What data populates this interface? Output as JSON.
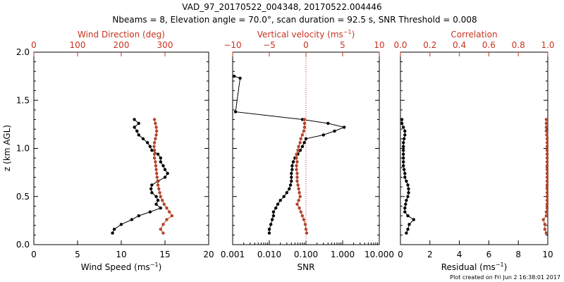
{
  "figure": {
    "title_line1": "VAD_97_20170522_004348, 20170522.004446",
    "title_line2": "Nbeams = 8, Elevation angle = 70.0°, scan duration = 92.5 s, SNR Threshold = 0.008",
    "ylabel": "z (km AGL)",
    "footer": "Plot created on Fri Jun  2 16:38:01 2017",
    "colors": {
      "black": "#000000",
      "red": "#c8321e",
      "series_red": "#b4442a"
    }
  },
  "chart_data": [
    {
      "type": "line",
      "bottom_axis": {
        "label_prefix": "Wind Speed (ms",
        "label_exp": "−1",
        "label_suffix": ")",
        "range": [
          0,
          20
        ],
        "ticks": [
          0,
          5,
          10,
          15,
          20
        ],
        "tick_labels": [
          "0",
          "5",
          "10",
          "15",
          "20"
        ]
      },
      "top_axis": {
        "label": "Wind Direction (deg)",
        "range": [
          0,
          400
        ],
        "ticks": [
          0,
          100,
          200,
          300
        ],
        "tick_labels": [
          "0",
          "100",
          "200",
          "300"
        ]
      },
      "y_axis": {
        "range": [
          0,
          2.0
        ],
        "ticks": [
          0,
          0.5,
          1.0,
          1.5,
          2.0
        ],
        "tick_labels": [
          "0.0",
          "0.5",
          "1.0",
          "1.5",
          "2.0"
        ]
      },
      "series": [
        {
          "axis": "bottom",
          "color": "black",
          "z": [
            0.12,
            0.16,
            0.21,
            0.26,
            0.3,
            0.34,
            0.38,
            0.42,
            0.46,
            0.5,
            0.54,
            0.58,
            0.62,
            0.66,
            0.7,
            0.74,
            0.78,
            0.82,
            0.86,
            0.9,
            0.94,
            0.98,
            1.02,
            1.06,
            1.1,
            1.14,
            1.18,
            1.22,
            1.26,
            1.3
          ],
          "values": [
            9.0,
            9.2,
            10.0,
            11.2,
            12.0,
            13.3,
            14.5,
            14.0,
            14.2,
            14.0,
            13.5,
            13.4,
            13.5,
            14.2,
            15.0,
            15.3,
            15.0,
            14.8,
            14.5,
            14.5,
            14.2,
            13.5,
            13.3,
            13.0,
            12.5,
            12.0,
            11.8,
            11.5,
            12.0,
            11.5
          ]
        },
        {
          "axis": "top",
          "color": "red",
          "z": [
            0.12,
            0.16,
            0.21,
            0.26,
            0.3,
            0.34,
            0.38,
            0.42,
            0.46,
            0.5,
            0.54,
            0.58,
            0.62,
            0.66,
            0.7,
            0.74,
            0.78,
            0.82,
            0.86,
            0.9,
            0.94,
            0.98,
            1.02,
            1.06,
            1.1,
            1.14,
            1.18,
            1.22,
            1.26,
            1.3
          ],
          "values": [
            296,
            290,
            296,
            304,
            316,
            310,
            304,
            298,
            294,
            290,
            288,
            286,
            284,
            283,
            282,
            281,
            280,
            279,
            278,
            276,
            276,
            276,
            275,
            276,
            278,
            280,
            281,
            280,
            278,
            276
          ]
        }
      ]
    },
    {
      "type": "line",
      "bottom_axis": {
        "label": "SNR",
        "scale": "log",
        "range": [
          0.001,
          10
        ],
        "ticks": [
          0.001,
          0.01,
          0.1,
          1,
          10
        ],
        "tick_labels": [
          "0.001",
          "0.010",
          "0.100",
          "1.000",
          "10.000"
        ]
      },
      "top_axis": {
        "label_prefix": "Vertical velocity (ms",
        "label_exp": "−1",
        "label_suffix": ")",
        "range": [
          -10,
          10
        ],
        "ticks": [
          -10,
          -5,
          0,
          5,
          10
        ],
        "tick_labels": [
          "−10",
          "−5",
          "0",
          "5",
          "10"
        ],
        "zero_reference_line": true
      },
      "y_axis": {
        "range": [
          0,
          2.0
        ]
      },
      "series": [
        {
          "axis": "bottom",
          "color": "black",
          "z": [
            0.12,
            0.16,
            0.21,
            0.26,
            0.3,
            0.34,
            0.38,
            0.42,
            0.46,
            0.5,
            0.54,
            0.58,
            0.62,
            0.66,
            0.7,
            0.74,
            0.78,
            0.82,
            0.86,
            0.9,
            0.94,
            0.98,
            1.02,
            1.06,
            1.1,
            1.14,
            1.18,
            1.22,
            1.26,
            1.3,
            1.38,
            1.73,
            1.75
          ],
          "values": [
            0.01,
            0.01,
            0.011,
            0.012,
            0.013,
            0.013,
            0.015,
            0.017,
            0.02,
            0.025,
            0.03,
            0.035,
            0.038,
            0.04,
            0.04,
            0.04,
            0.042,
            0.042,
            0.045,
            0.05,
            0.06,
            0.07,
            0.08,
            0.09,
            0.1,
            0.3,
            0.6,
            1.1,
            0.4,
            0.08,
            0.0012,
            0.0016,
            0.0011
          ]
        },
        {
          "axis": "top",
          "color": "red",
          "z": [
            0.12,
            0.16,
            0.21,
            0.26,
            0.3,
            0.34,
            0.38,
            0.42,
            0.46,
            0.5,
            0.54,
            0.58,
            0.62,
            0.66,
            0.7,
            0.74,
            0.78,
            0.82,
            0.86,
            0.9,
            0.94,
            0.98,
            1.02,
            1.06,
            1.1,
            1.14,
            1.18,
            1.22,
            1.26,
            1.3
          ],
          "values": [
            0.1,
            0.0,
            -0.1,
            -0.3,
            -0.5,
            -0.7,
            -0.9,
            -1.2,
            -1.0,
            -0.8,
            -0.9,
            -1.0,
            -1.1,
            -1.2,
            -1.2,
            -1.2,
            -1.3,
            -1.3,
            -1.2,
            -1.3,
            -1.3,
            -1.1,
            -1.0,
            -0.8,
            -0.7,
            -0.5,
            -0.3,
            -0.2,
            -0.2,
            -0.2
          ]
        }
      ]
    },
    {
      "type": "line",
      "bottom_axis": {
        "label_prefix": "Residual (ms",
        "label_exp": "−1",
        "label_suffix": ")",
        "range": [
          0,
          10
        ],
        "ticks": [
          0,
          2,
          4,
          6,
          8,
          10
        ],
        "tick_labels": [
          "0",
          "2",
          "4",
          "6",
          "8",
          "10"
        ]
      },
      "top_axis": {
        "label": "Correlation",
        "range": [
          0,
          1.0
        ],
        "ticks": [
          0,
          0.2,
          0.4,
          0.6,
          0.8,
          1.0
        ],
        "tick_labels": [
          "0.0",
          "0.2",
          "0.4",
          "0.6",
          "0.8",
          "1.0"
        ]
      },
      "y_axis": {
        "range": [
          0,
          2.0
        ]
      },
      "series": [
        {
          "axis": "bottom",
          "color": "black",
          "z": [
            0.12,
            0.16,
            0.21,
            0.26,
            0.3,
            0.34,
            0.38,
            0.42,
            0.46,
            0.5,
            0.54,
            0.58,
            0.62,
            0.66,
            0.7,
            0.74,
            0.78,
            0.82,
            0.86,
            0.9,
            0.94,
            0.98,
            1.02,
            1.06,
            1.1,
            1.14,
            1.18,
            1.22,
            1.26,
            1.3
          ],
          "values": [
            0.4,
            0.5,
            0.6,
            0.9,
            0.5,
            0.3,
            0.3,
            0.35,
            0.4,
            0.5,
            0.55,
            0.55,
            0.5,
            0.4,
            0.3,
            0.3,
            0.25,
            0.2,
            0.2,
            0.2,
            0.2,
            0.2,
            0.2,
            0.2,
            0.25,
            0.3,
            0.3,
            0.2,
            0.1,
            0.1
          ]
        },
        {
          "axis": "top",
          "color": "red",
          "z": [
            0.12,
            0.16,
            0.21,
            0.26,
            0.3,
            0.34,
            0.38,
            0.42,
            0.46,
            0.5,
            0.54,
            0.58,
            0.62,
            0.66,
            0.7,
            0.74,
            0.78,
            0.82,
            0.86,
            0.9,
            0.94,
            0.98,
            1.02,
            1.06,
            1.1,
            1.14,
            1.18,
            1.22,
            1.26,
            1.3
          ],
          "values": [
            0.99,
            0.98,
            0.98,
            0.97,
            0.99,
            0.99,
            0.995,
            0.995,
            0.995,
            0.995,
            0.995,
            0.995,
            0.995,
            0.995,
            0.995,
            0.995,
            0.995,
            0.995,
            0.995,
            0.995,
            0.995,
            0.995,
            0.995,
            0.995,
            0.995,
            0.993,
            0.99,
            0.99,
            0.99,
            0.99
          ]
        }
      ]
    }
  ]
}
